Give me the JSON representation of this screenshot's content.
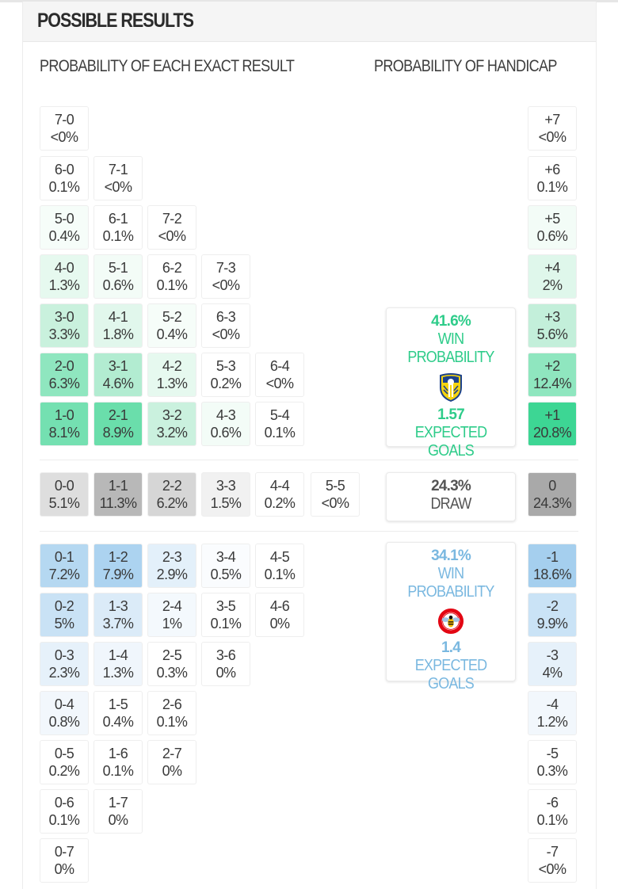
{
  "header": {
    "title": "POSSIBLE RESULTS"
  },
  "subheadings": {
    "exact": "PROBABILITY OF EACH EXACT RESULT",
    "handicap": "PROBABILITY OF HANDICAP"
  },
  "colors": {
    "home_accent": "#2ecc8a",
    "away_accent": "#7ab8e0",
    "draw_accent": "#555555"
  },
  "home_rows": [
    [
      {
        "score": "7-0",
        "pct": "<0%",
        "bg": "#ffffff"
      }
    ],
    [
      {
        "score": "6-0",
        "pct": "0.1%",
        "bg": "#ffffff"
      },
      {
        "score": "7-1",
        "pct": "<0%",
        "bg": "#ffffff"
      }
    ],
    [
      {
        "score": "5-0",
        "pct": "0.4%",
        "bg": "#f6fdf9"
      },
      {
        "score": "6-1",
        "pct": "0.1%",
        "bg": "#ffffff"
      },
      {
        "score": "7-2",
        "pct": "<0%",
        "bg": "#ffffff"
      }
    ],
    [
      {
        "score": "4-0",
        "pct": "1.3%",
        "bg": "#e6f9ef"
      },
      {
        "score": "5-1",
        "pct": "0.6%",
        "bg": "#f3fcf7"
      },
      {
        "score": "6-2",
        "pct": "0.1%",
        "bg": "#ffffff"
      },
      {
        "score": "7-3",
        "pct": "<0%",
        "bg": "#ffffff"
      }
    ],
    [
      {
        "score": "3-0",
        "pct": "3.3%",
        "bg": "#c9f1dd"
      },
      {
        "score": "4-1",
        "pct": "1.8%",
        "bg": "#e1f7ec"
      },
      {
        "score": "5-2",
        "pct": "0.4%",
        "bg": "#f6fdf9"
      },
      {
        "score": "6-3",
        "pct": "<0%",
        "bg": "#ffffff"
      }
    ],
    [
      {
        "score": "2-0",
        "pct": "6.3%",
        "bg": "#8fe6bf"
      },
      {
        "score": "3-1",
        "pct": "4.6%",
        "bg": "#b2ecd1"
      },
      {
        "score": "4-2",
        "pct": "1.3%",
        "bg": "#e6f9ef"
      },
      {
        "score": "5-3",
        "pct": "0.2%",
        "bg": "#ffffff"
      },
      {
        "score": "6-4",
        "pct": "<0%",
        "bg": "#ffffff"
      }
    ],
    [
      {
        "score": "1-0",
        "pct": "8.1%",
        "bg": "#74e0b1"
      },
      {
        "score": "2-1",
        "pct": "8.9%",
        "bg": "#6adeab"
      },
      {
        "score": "3-2",
        "pct": "3.2%",
        "bg": "#caf1de"
      },
      {
        "score": "4-3",
        "pct": "0.6%",
        "bg": "#f3fcf7"
      },
      {
        "score": "5-4",
        "pct": "0.1%",
        "bg": "#ffffff"
      }
    ]
  ],
  "draw_row": [
    {
      "score": "0-0",
      "pct": "5.1%",
      "bg": "#dedede"
    },
    {
      "score": "1-1",
      "pct": "11.3%",
      "bg": "#b8b8b8"
    },
    {
      "score": "2-2",
      "pct": "6.2%",
      "bg": "#d6d6d6"
    },
    {
      "score": "3-3",
      "pct": "1.5%",
      "bg": "#f1f1f1"
    },
    {
      "score": "4-4",
      "pct": "0.2%",
      "bg": "#ffffff"
    },
    {
      "score": "5-5",
      "pct": "<0%",
      "bg": "#ffffff"
    }
  ],
  "away_rows": [
    [
      {
        "score": "0-1",
        "pct": "7.2%",
        "bg": "#b5d8f1"
      },
      {
        "score": "1-2",
        "pct": "7.9%",
        "bg": "#acd3f0"
      },
      {
        "score": "2-3",
        "pct": "2.9%",
        "bg": "#e3f0fa"
      },
      {
        "score": "3-4",
        "pct": "0.5%",
        "bg": "#fafcfe"
      },
      {
        "score": "4-5",
        "pct": "0.1%",
        "bg": "#ffffff"
      }
    ],
    [
      {
        "score": "0-2",
        "pct": "5%",
        "bg": "#c9e2f5"
      },
      {
        "score": "1-3",
        "pct": "3.7%",
        "bg": "#dbebf8"
      },
      {
        "score": "2-4",
        "pct": "1%",
        "bg": "#f4f9fd"
      },
      {
        "score": "3-5",
        "pct": "0.1%",
        "bg": "#ffffff"
      },
      {
        "score": "4-6",
        "pct": "0%",
        "bg": "#ffffff"
      }
    ],
    [
      {
        "score": "0-3",
        "pct": "2.3%",
        "bg": "#e6f1fa"
      },
      {
        "score": "1-4",
        "pct": "1.3%",
        "bg": "#f0f6fc"
      },
      {
        "score": "2-5",
        "pct": "0.3%",
        "bg": "#ffffff"
      },
      {
        "score": "3-6",
        "pct": "0%",
        "bg": "#ffffff"
      }
    ],
    [
      {
        "score": "0-4",
        "pct": "0.8%",
        "bg": "#f2f7fc"
      },
      {
        "score": "1-5",
        "pct": "0.4%",
        "bg": "#ffffff"
      },
      {
        "score": "2-6",
        "pct": "0.1%",
        "bg": "#ffffff"
      }
    ],
    [
      {
        "score": "0-5",
        "pct": "0.2%",
        "bg": "#ffffff"
      },
      {
        "score": "1-6",
        "pct": "0.1%",
        "bg": "#ffffff"
      },
      {
        "score": "2-7",
        "pct": "0%",
        "bg": "#ffffff"
      }
    ],
    [
      {
        "score": "0-6",
        "pct": "0.1%",
        "bg": "#ffffff"
      },
      {
        "score": "1-7",
        "pct": "0%",
        "bg": "#ffffff"
      }
    ],
    [
      {
        "score": "0-7",
        "pct": "0%",
        "bg": "#ffffff"
      }
    ]
  ],
  "handicap_home": [
    {
      "label": "+7",
      "pct": "<0%",
      "bg": "#ffffff"
    },
    {
      "label": "+6",
      "pct": "0.1%",
      "bg": "#ffffff"
    },
    {
      "label": "+5",
      "pct": "0.6%",
      "bg": "#f3fcf7"
    },
    {
      "label": "+4",
      "pct": "2%",
      "bg": "#dff7eb"
    },
    {
      "label": "+3",
      "pct": "5.6%",
      "bg": "#c3efda"
    },
    {
      "label": "+2",
      "pct": "12.4%",
      "bg": "#8fe6bf"
    },
    {
      "label": "+1",
      "pct": "20.8%",
      "bg": "#3dd694"
    }
  ],
  "handicap_draw": {
    "label": "0",
    "pct": "24.3%",
    "bg": "#a9a9a9"
  },
  "handicap_away": [
    {
      "label": "-1",
      "pct": "18.6%",
      "bg": "#a5cfee"
    },
    {
      "label": "-2",
      "pct": "9.9%",
      "bg": "#cae3f6"
    },
    {
      "label": "-3",
      "pct": "4%",
      "bg": "#e6f1fa"
    },
    {
      "label": "-4",
      "pct": "1.2%",
      "bg": "#f2f7fc"
    },
    {
      "label": "-5",
      "pct": "0.3%",
      "bg": "#ffffff"
    },
    {
      "label": "-6",
      "pct": "0.1%",
      "bg": "#ffffff"
    },
    {
      "label": "-7",
      "pct": "<0%",
      "bg": "#ffffff"
    }
  ],
  "home_summary": {
    "win_pct": "41.6%",
    "win_label": "WIN PROBABILITY",
    "logo_icon": "leeds-crest-icon",
    "xg": "1.57",
    "xg_label": "EXPECTED GOALS"
  },
  "draw_summary": {
    "pct": "24.3%",
    "label": "DRAW"
  },
  "away_summary": {
    "win_pct": "34.1%",
    "win_label": "WIN PROBABILITY",
    "logo_icon": "brentford-crest-icon",
    "xg": "1.4",
    "xg_label": "EXPECTED GOALS"
  }
}
